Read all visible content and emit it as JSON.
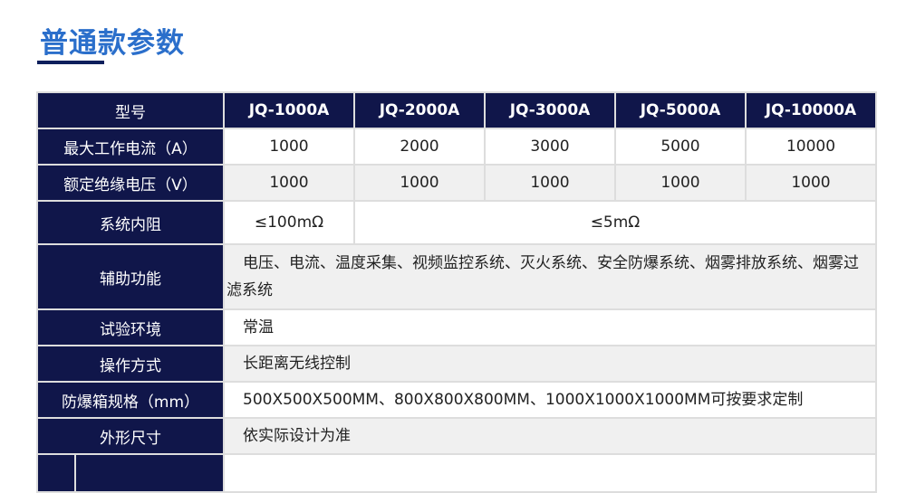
{
  "title": "普通款参数",
  "header": {
    "label": "型号",
    "models": [
      "JQ-1000A",
      "JQ-2000A",
      "JQ-3000A",
      "JQ-5000A",
      "JQ-10000A"
    ]
  },
  "rows": {
    "max_current": {
      "label": "最大工作电流（A）",
      "values": [
        "1000",
        "2000",
        "3000",
        "5000",
        "10000"
      ]
    },
    "rated_voltage": {
      "label": "额定绝缘电压（V）",
      "values": [
        "1000",
        "1000",
        "1000",
        "1000",
        "1000"
      ]
    },
    "resistance": {
      "label": "系统内阻",
      "first": "≤100mΩ",
      "rest": "≤5mΩ"
    },
    "aux": {
      "label": "辅助功能",
      "value": "电压、电流、温度采集、视频监控系统、灭火系统、安全防爆系统、烟雾排放系统、烟雾过滤系统"
    },
    "env": {
      "label": "试验环境",
      "value": "常温"
    },
    "op": {
      "label": "操作方式",
      "value": "长距离无线控制"
    },
    "box": {
      "label": "防爆箱规格（mm）",
      "value": "500X500X500MM、800X800X800MM、1000X1000X1000MM可按要求定制"
    },
    "size": {
      "label": "外形尺寸",
      "value": "依实际设计为准"
    }
  }
}
